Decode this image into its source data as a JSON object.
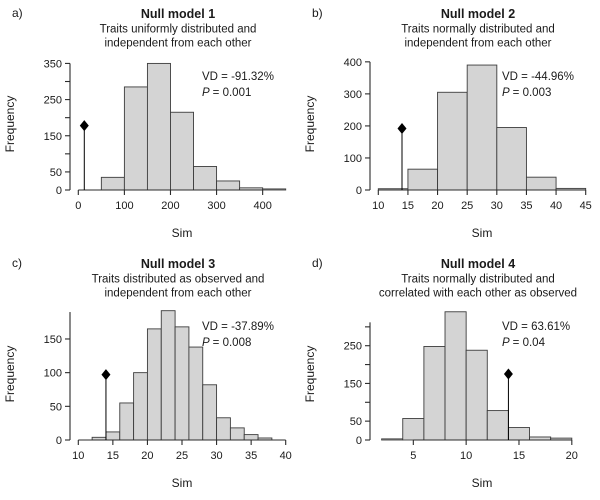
{
  "figure": {
    "background": "#ffffff",
    "bar_fill": "#d4d4d4",
    "bar_stroke": "#3d3d3d",
    "axis_color": "#2b2b2b",
    "marker_color": "#000000",
    "text_color": "#1a1a1a"
  },
  "chart_data": [
    {
      "type": "bar",
      "panel_label": "a)",
      "title": "Null model 1",
      "subtitle_lines": [
        "Traits uniformly distributed and",
        "independent from each other"
      ],
      "xlabel": "Sim",
      "ylabel": "Frequency",
      "bin_start": 50,
      "bin_width": 50,
      "values": [
        35,
        285,
        350,
        215,
        65,
        25,
        6,
        3
      ],
      "x_ticks": [
        0,
        100,
        200,
        300,
        400
      ],
      "y_ticks": [
        0,
        50,
        100,
        150,
        200,
        250,
        300,
        350
      ],
      "y_tick_labels": [
        "0",
        "50",
        "",
        "150",
        "",
        "250",
        "",
        "350"
      ],
      "x_range": [
        -18,
        468
      ],
      "y_range": [
        0,
        365
      ],
      "y_axis_top": 350,
      "grid": false,
      "observed": {
        "x": 13,
        "stem_top": 178
      },
      "annotation": {
        "vd": "VD = -91.32%",
        "p_name": "P",
        "p_value": "= 0.001"
      }
    },
    {
      "type": "bar",
      "panel_label": "b)",
      "title": "Null model 2",
      "subtitle_lines": [
        "Traits normally distributed and",
        "independent from each other"
      ],
      "xlabel": "Sim",
      "ylabel": "Frequency",
      "bin_start": 10,
      "bin_width": 5,
      "values": [
        4,
        65,
        305,
        390,
        195,
        40,
        5
      ],
      "x_ticks": [
        10,
        15,
        20,
        25,
        30,
        35,
        40,
        45
      ],
      "y_ticks": [
        0,
        100,
        200,
        300,
        400
      ],
      "y_tick_labels": [
        "0",
        "100",
        "200",
        "300",
        "400"
      ],
      "x_range": [
        8.6,
        46.4
      ],
      "y_range": [
        0,
        412
      ],
      "y_axis_top": 400,
      "grid": false,
      "observed": {
        "x": 14,
        "stem_top": 192
      },
      "annotation": {
        "vd": "VD = -44.96%",
        "p_name": "P",
        "p_value": "= 0.003"
      }
    },
    {
      "type": "bar",
      "panel_label": "c)",
      "title": "Null model 3",
      "subtitle_lines": [
        "Traits distributed as observed and",
        "independent from each other"
      ],
      "xlabel": "Sim",
      "ylabel": "Frequency",
      "bin_start": 12,
      "bin_width": 2,
      "values": [
        4,
        12,
        55,
        100,
        165,
        192,
        168,
        138,
        82,
        33,
        18,
        8,
        3
      ],
      "x_ticks": [
        10,
        15,
        20,
        25,
        30,
        35,
        40
      ],
      "y_ticks": [
        0,
        50,
        100,
        150
      ],
      "y_tick_labels": [
        "0",
        "50",
        "100",
        "150"
      ],
      "x_range": [
        8.8,
        41.2
      ],
      "y_range": [
        0,
        196
      ],
      "y_axis_top": 190,
      "grid": false,
      "observed": {
        "x": 14,
        "stem_top": 97
      },
      "annotation": {
        "vd": "VD = -37.89%",
        "p_name": "P",
        "p_value": "= 0.008"
      }
    },
    {
      "type": "bar",
      "panel_label": "d)",
      "title": "Null model 4",
      "subtitle_lines": [
        "Traits normally distributed and",
        "correlated with each other as observed"
      ],
      "xlabel": "Sim",
      "ylabel": "Frequency",
      "bin_start": 2,
      "bin_width": 2,
      "values": [
        3,
        57,
        248,
        340,
        238,
        78,
        33,
        8,
        5
      ],
      "x_ticks": [
        5,
        10,
        15,
        20
      ],
      "y_ticks": [
        0,
        50,
        100,
        150,
        200,
        250,
        300
      ],
      "y_tick_labels": [
        "0",
        "50",
        "",
        "150",
        "",
        "250",
        ""
      ],
      "x_range": [
        0.9,
        22.1
      ],
      "y_range": [
        0,
        350
      ],
      "y_axis_top": 312,
      "grid": false,
      "observed": {
        "x": 14,
        "stem_top": 175
      },
      "annotation": {
        "vd": "VD = 63.61%",
        "p_name": "P",
        "p_value": "= 0.04"
      }
    }
  ]
}
